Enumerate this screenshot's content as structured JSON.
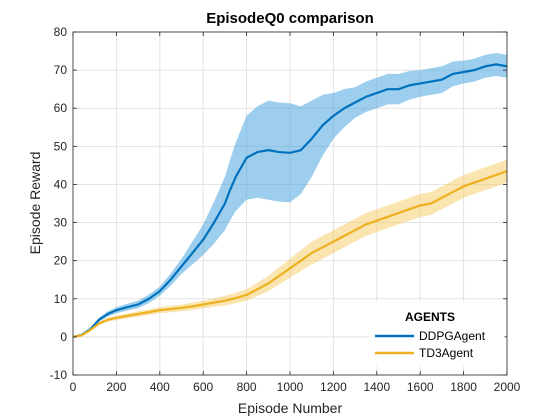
{
  "chart_data": {
    "type": "line",
    "title": "EpisodeQ0 comparison",
    "xlabel": "Episode Number",
    "ylabel": "Episode Reward",
    "xlim": [
      0,
      2000
    ],
    "ylim": [
      -10,
      80
    ],
    "xticks": [
      0,
      200,
      400,
      600,
      800,
      1000,
      1200,
      1400,
      1600,
      1800,
      2000
    ],
    "yticks": [
      -10,
      0,
      10,
      20,
      30,
      40,
      50,
      60,
      70,
      80
    ],
    "grid": true,
    "legend": {
      "title": "AGENTS",
      "placement": "bottom-right"
    },
    "series": [
      {
        "name": "DDPGAgent",
        "color": "#0072BD",
        "band_color": "#4DA6E0",
        "points": [
          [
            0,
            0
          ],
          [
            40,
            0.5
          ],
          [
            80,
            2
          ],
          [
            120,
            4.5
          ],
          [
            160,
            6
          ],
          [
            200,
            7
          ],
          [
            250,
            7.8
          ],
          [
            300,
            8.5
          ],
          [
            350,
            10
          ],
          [
            400,
            12
          ],
          [
            450,
            15
          ],
          [
            500,
            18.5
          ],
          [
            550,
            22
          ],
          [
            600,
            25.5
          ],
          [
            650,
            30
          ],
          [
            700,
            35
          ],
          [
            720,
            38
          ],
          [
            750,
            42
          ],
          [
            780,
            45
          ],
          [
            800,
            47
          ],
          [
            850,
            48.5
          ],
          [
            900,
            49
          ],
          [
            950,
            48.5
          ],
          [
            1000,
            48.3
          ],
          [
            1050,
            49
          ],
          [
            1100,
            52
          ],
          [
            1150,
            55.5
          ],
          [
            1200,
            58
          ],
          [
            1250,
            60
          ],
          [
            1300,
            61.5
          ],
          [
            1350,
            63
          ],
          [
            1400,
            64
          ],
          [
            1450,
            65
          ],
          [
            1500,
            65
          ],
          [
            1550,
            66
          ],
          [
            1600,
            66.5
          ],
          [
            1650,
            67
          ],
          [
            1700,
            67.5
          ],
          [
            1750,
            69
          ],
          [
            1800,
            69.5
          ],
          [
            1850,
            70
          ],
          [
            1900,
            71
          ],
          [
            1950,
            71.5
          ],
          [
            2000,
            71
          ]
        ],
        "band_halfwidth": [
          [
            0,
            0.2
          ],
          [
            100,
            0.5
          ],
          [
            200,
            0.8
          ],
          [
            300,
            1
          ],
          [
            400,
            1.2
          ],
          [
            500,
            2
          ],
          [
            600,
            4
          ],
          [
            700,
            7
          ],
          [
            800,
            11
          ],
          [
            900,
            13
          ],
          [
            1000,
            13
          ],
          [
            1100,
            10
          ],
          [
            1200,
            6
          ],
          [
            1300,
            4
          ],
          [
            1400,
            4
          ],
          [
            1500,
            4
          ],
          [
            1600,
            3.5
          ],
          [
            1700,
            3.5
          ],
          [
            1800,
            3
          ],
          [
            1900,
            3
          ],
          [
            2000,
            3
          ]
        ]
      },
      {
        "name": "TD3Agent",
        "color": "#EDB120",
        "band_color": "#F5CE6E",
        "points": [
          [
            0,
            0
          ],
          [
            40,
            0.4
          ],
          [
            80,
            1.8
          ],
          [
            120,
            3.5
          ],
          [
            160,
            4.5
          ],
          [
            200,
            5
          ],
          [
            250,
            5.5
          ],
          [
            300,
            6
          ],
          [
            350,
            6.5
          ],
          [
            400,
            7
          ],
          [
            450,
            7.3
          ],
          [
            500,
            7.6
          ],
          [
            550,
            8
          ],
          [
            600,
            8.5
          ],
          [
            650,
            9
          ],
          [
            700,
            9.5
          ],
          [
            750,
            10.2
          ],
          [
            800,
            11
          ],
          [
            850,
            12.5
          ],
          [
            900,
            14
          ],
          [
            950,
            16
          ],
          [
            1000,
            18
          ],
          [
            1050,
            20
          ],
          [
            1100,
            22
          ],
          [
            1150,
            23.5
          ],
          [
            1200,
            25
          ],
          [
            1250,
            26.5
          ],
          [
            1300,
            28
          ],
          [
            1350,
            29.5
          ],
          [
            1400,
            30.5
          ],
          [
            1450,
            31.5
          ],
          [
            1500,
            32.5
          ],
          [
            1550,
            33.5
          ],
          [
            1600,
            34.5
          ],
          [
            1650,
            35
          ],
          [
            1700,
            36.5
          ],
          [
            1750,
            38
          ],
          [
            1800,
            39.5
          ],
          [
            1850,
            40.5
          ],
          [
            1900,
            41.5
          ],
          [
            1950,
            42.5
          ],
          [
            2000,
            43.5
          ]
        ],
        "band_halfwidth": [
          [
            0,
            0.2
          ],
          [
            200,
            0.6
          ],
          [
            400,
            0.8
          ],
          [
            600,
            1
          ],
          [
            800,
            1.5
          ],
          [
            900,
            2
          ],
          [
            1000,
            2.5
          ],
          [
            1100,
            3
          ],
          [
            1200,
            3
          ],
          [
            1400,
            3
          ],
          [
            1600,
            3
          ],
          [
            1800,
            3
          ],
          [
            2000,
            3
          ]
        ]
      }
    ]
  }
}
